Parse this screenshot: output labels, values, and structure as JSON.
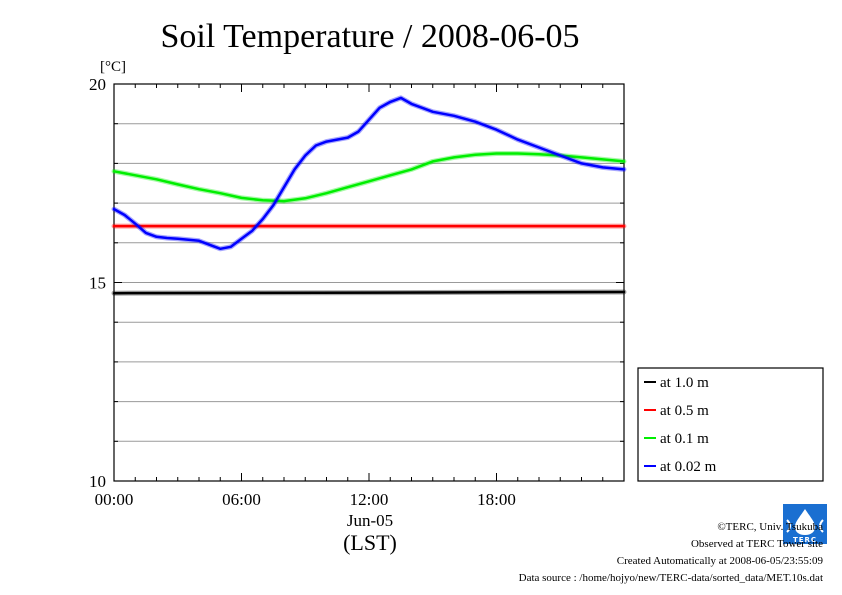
{
  "chart_data": {
    "type": "line",
    "title": "Soil Temperature / 2008-06-05",
    "ylabel": "[°C]",
    "xlim": [
      0,
      24
    ],
    "ylim": [
      10,
      20
    ],
    "grid": true,
    "legend_placement": "lower-right-outside",
    "x_ticks": [
      {
        "value": 0,
        "label": "00:00"
      },
      {
        "value": 6,
        "label": "06:00"
      },
      {
        "value": 12,
        "label": "12:00"
      },
      {
        "value": 18,
        "label": "18:00"
      }
    ],
    "y_ticks": [
      {
        "value": 10,
        "label": "10"
      },
      {
        "value": 15,
        "label": "15"
      },
      {
        "value": 20,
        "label": "20"
      }
    ],
    "date_label": "Jun-05",
    "tz_label": "(LST)",
    "series": [
      {
        "name": "at 1.0 m",
        "color": "#000000",
        "x": [
          0,
          24
        ],
        "y": [
          14.73,
          14.76
        ]
      },
      {
        "name": "at 0.5 m",
        "color": "#ff0000",
        "x": [
          0,
          24
        ],
        "y": [
          16.42,
          16.42
        ]
      },
      {
        "name": "at 0.1 m",
        "color": "#00ee00",
        "x": [
          0,
          1,
          2,
          3,
          4,
          5,
          6,
          7,
          8,
          9,
          10,
          11,
          12,
          13,
          14,
          15,
          16,
          17,
          18,
          19,
          20,
          21,
          22,
          23,
          24
        ],
        "y": [
          17.8,
          17.7,
          17.6,
          17.47,
          17.35,
          17.25,
          17.13,
          17.07,
          17.05,
          17.12,
          17.25,
          17.4,
          17.55,
          17.7,
          17.85,
          18.05,
          18.15,
          18.22,
          18.25,
          18.25,
          18.23,
          18.2,
          18.15,
          18.1,
          18.05
        ]
      },
      {
        "name": "at 0.02 m",
        "color": "#0000ff",
        "x": [
          0,
          0.5,
          1,
          1.5,
          2,
          2.5,
          3,
          4,
          4.5,
          5,
          5.5,
          6,
          6.5,
          7,
          7.5,
          8,
          8.5,
          9,
          9.5,
          10,
          10.5,
          11,
          11.5,
          12,
          12.5,
          13,
          13.5,
          14,
          14.5,
          15,
          16,
          17,
          18,
          19,
          20,
          21,
          22,
          23,
          24
        ],
        "y": [
          16.85,
          16.7,
          16.48,
          16.25,
          16.15,
          16.12,
          16.1,
          16.05,
          15.95,
          15.85,
          15.9,
          16.1,
          16.3,
          16.6,
          16.95,
          17.4,
          17.85,
          18.2,
          18.45,
          18.55,
          18.6,
          18.65,
          18.8,
          19.1,
          19.4,
          19.55,
          19.65,
          19.5,
          19.4,
          19.3,
          19.2,
          19.05,
          18.85,
          18.6,
          18.4,
          18.2,
          18.0,
          17.9,
          17.85
        ]
      }
    ]
  },
  "footer": {
    "copyright": "©TERC, Univ. Tsukuba",
    "observed": "Observed at TERC Tower site",
    "created": "Created Automatically at 2008-06-05/23:55:09",
    "source": "Data source : /home/hojyo/new/TERC-data/sorted_data/MET.10s.dat",
    "logo_text": "TERC"
  }
}
